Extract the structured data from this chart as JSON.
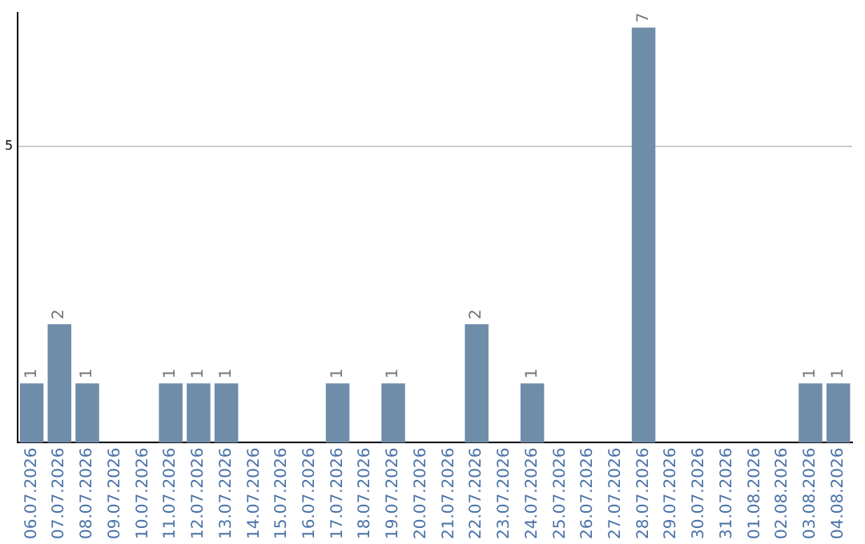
{
  "chart_data": {
    "type": "bar",
    "categories": [
      "06.07.2026",
      "07.07.2026",
      "08.07.2026",
      "09.07.2026",
      "10.07.2026",
      "11.07.2026",
      "12.07.2026",
      "13.07.2026",
      "14.07.2026",
      "15.07.2026",
      "16.07.2026",
      "17.07.2026",
      "18.07.2026",
      "19.07.2026",
      "20.07.2026",
      "21.07.2026",
      "22.07.2026",
      "23.07.2026",
      "24.07.2026",
      "25.07.2026",
      "26.07.2026",
      "27.07.2026",
      "28.07.2026",
      "29.07.2026",
      "30.07.2026",
      "31.07.2026",
      "01.08.2026",
      "02.08.2026",
      "03.08.2026",
      "04.08.2026"
    ],
    "values": [
      1,
      2,
      1,
      0,
      0,
      1,
      1,
      1,
      0,
      0,
      0,
      1,
      0,
      1,
      0,
      0,
      2,
      0,
      1,
      0,
      0,
      0,
      7,
      0,
      0,
      0,
      0,
      0,
      1,
      1
    ],
    "value_labels": [
      "1",
      "2",
      "1",
      null,
      null,
      "1",
      "1",
      "1",
      null,
      null,
      null,
      "1",
      null,
      "1",
      null,
      null,
      "2",
      null,
      "1",
      null,
      null,
      null,
      "7",
      null,
      null,
      null,
      null,
      null,
      "1",
      "1"
    ],
    "color": "#6f8ca9",
    "ylim": [
      0,
      7.25
    ],
    "yticks": [
      5
    ],
    "grid": "y",
    "legend": false
  }
}
